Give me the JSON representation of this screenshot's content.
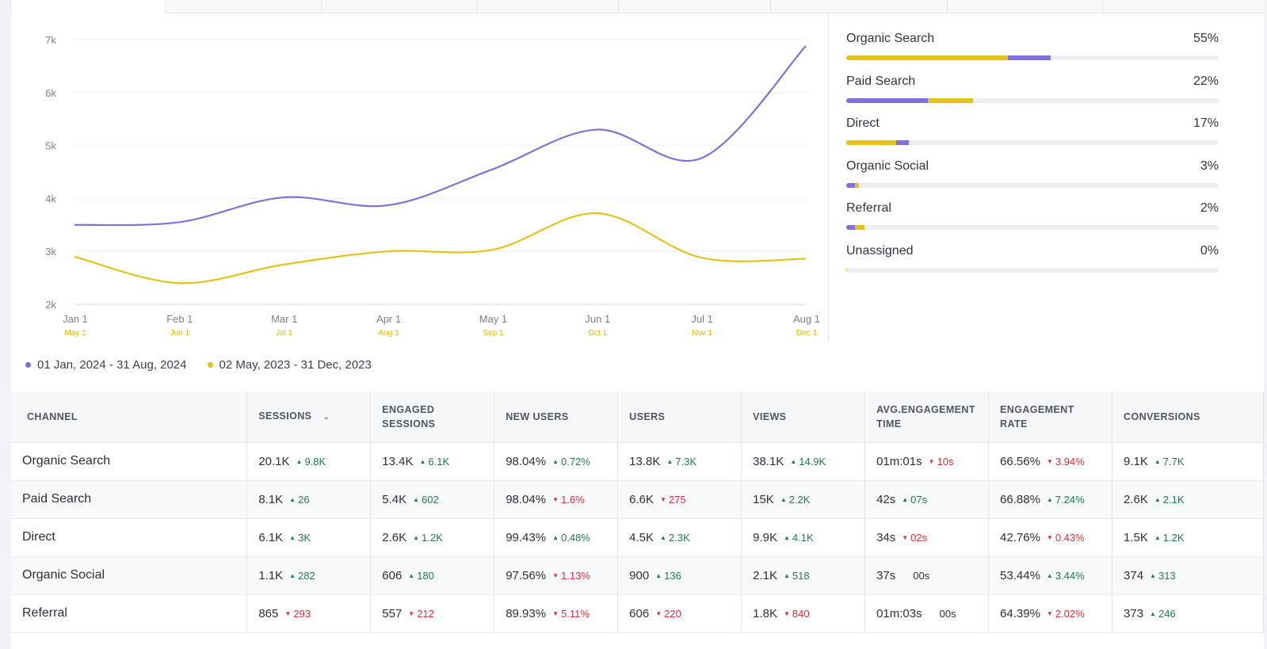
{
  "colors": {
    "current_series": "#8071d8",
    "previous_series": "#e5c21b",
    "up": "#1f7a4d",
    "down": "#d0323c"
  },
  "chart_data": {
    "type": "line",
    "ylim": [
      2000,
      7000
    ],
    "yticks": [
      "2k",
      "3k",
      "4k",
      "5k",
      "6k",
      "7k"
    ],
    "categories": [
      "Jan 1",
      "Feb 1",
      "Mar 1",
      "Apr 1",
      "May 1",
      "Jun 1",
      "Jul 1",
      "Aug 1"
    ],
    "categories_secondary": [
      "May 1",
      "Jun 1",
      "Jul 1",
      "Aug 1",
      "Sep 1",
      "Oct 1",
      "Nov 1",
      "Dec 1"
    ],
    "series": [
      {
        "name": "01 Jan, 2024 - 31 Aug, 2024",
        "values": [
          3500,
          3550,
          4020,
          3870,
          4550,
          5300,
          4760,
          6880
        ]
      },
      {
        "name": "02 May, 2023 - 31 Dec, 2023",
        "values": [
          2900,
          2400,
          2750,
          3000,
          3030,
          3720,
          2880,
          2860
        ]
      }
    ]
  },
  "channels": [
    {
      "name": "Organic Search",
      "pct": "55%",
      "segments": [
        {
          "color": "#e5c21b",
          "w": 43.5
        },
        {
          "color": "#8071d8",
          "w": 11.5
        }
      ]
    },
    {
      "name": "Paid Search",
      "pct": "22%",
      "segments": [
        {
          "color": "#8071d8",
          "w": 22
        },
        {
          "color": "#e5c21b",
          "w": 12
        }
      ]
    },
    {
      "name": "Direct",
      "pct": "17%",
      "segments": [
        {
          "color": "#e5c21b",
          "w": 13.5
        },
        {
          "color": "#8071d8",
          "w": 3.3
        }
      ]
    },
    {
      "name": "Organic Social",
      "pct": "3%",
      "segments": [
        {
          "color": "#8071d8",
          "w": 2.4
        },
        {
          "color": "#e5c21b",
          "w": 1.1
        }
      ]
    },
    {
      "name": "Referral",
      "pct": "2%",
      "segments": [
        {
          "color": "#8071d8",
          "w": 2.3
        },
        {
          "color": "#e5c21b",
          "w": 2.5
        }
      ]
    },
    {
      "name": "Unassigned",
      "pct": "0%",
      "segments": [
        {
          "color": "#e5c21b",
          "w": 0.3
        }
      ]
    }
  ],
  "table": {
    "headers": [
      "CHANNEL",
      "SESSIONS",
      "ENGAGED\nSESSIONS",
      "NEW USERS",
      "USERS",
      "VIEWS",
      "AVG.ENGAGEMENT\nTIME",
      "ENGAGEMENT\nRATE",
      "CONVERSIONS"
    ],
    "rows": [
      {
        "channel": "Organic Search",
        "cells": [
          [
            "20.1K",
            "up",
            "9.8K"
          ],
          [
            "13.4K",
            "up",
            "6.1K"
          ],
          [
            "98.04%",
            "up",
            "0.72%"
          ],
          [
            "13.8K",
            "up",
            "7.3K"
          ],
          [
            "38.1K",
            "up",
            "14.9K"
          ],
          [
            "01m:01s",
            "down",
            "10s"
          ],
          [
            "66.56%",
            "down",
            "3.94%"
          ],
          [
            "9.1K",
            "up",
            "7.7K"
          ]
        ]
      },
      {
        "channel": "Paid Search",
        "cells": [
          [
            "8.1K",
            "up",
            "26"
          ],
          [
            "5.4K",
            "up",
            "602"
          ],
          [
            "98.04%",
            "down",
            "1.6%"
          ],
          [
            "6.6K",
            "down",
            "275"
          ],
          [
            "15K",
            "up",
            "2.2K"
          ],
          [
            "42s",
            "up",
            "07s"
          ],
          [
            "66.88%",
            "up",
            "7.24%"
          ],
          [
            "2.6K",
            "up",
            "2.1K"
          ]
        ]
      },
      {
        "channel": "Direct",
        "cells": [
          [
            "6.1K",
            "up",
            "3K"
          ],
          [
            "2.6K",
            "up",
            "1.2K"
          ],
          [
            "99.43%",
            "up",
            "0.48%"
          ],
          [
            "4.5K",
            "up",
            "2.3K"
          ],
          [
            "9.9K",
            "up",
            "4.1K"
          ],
          [
            "34s",
            "down",
            "02s"
          ],
          [
            "42.76%",
            "down",
            "0.43%"
          ],
          [
            "1.5K",
            "up",
            "1.2K"
          ]
        ]
      },
      {
        "channel": "Organic Social",
        "cells": [
          [
            "1.1K",
            "up",
            "282"
          ],
          [
            "606",
            "up",
            "180"
          ],
          [
            "97.56%",
            "down",
            "1.13%"
          ],
          [
            "900",
            "up",
            "136"
          ],
          [
            "2.1K",
            "up",
            "518"
          ],
          [
            "37s",
            "neutral",
            "00s"
          ],
          [
            "53.44%",
            "up",
            "3.44%"
          ],
          [
            "374",
            "up",
            "313"
          ]
        ]
      },
      {
        "channel": "Referral",
        "cells": [
          [
            "865",
            "down",
            "293"
          ],
          [
            "557",
            "down",
            "212"
          ],
          [
            "89.93%",
            "down",
            "5.11%"
          ],
          [
            "606",
            "down",
            "220"
          ],
          [
            "1.8K",
            "down",
            "840"
          ],
          [
            "01m:03s",
            "neutral",
            "00s"
          ],
          [
            "64.39%",
            "down",
            "2.02%"
          ],
          [
            "373",
            "up",
            "246"
          ]
        ]
      }
    ]
  }
}
